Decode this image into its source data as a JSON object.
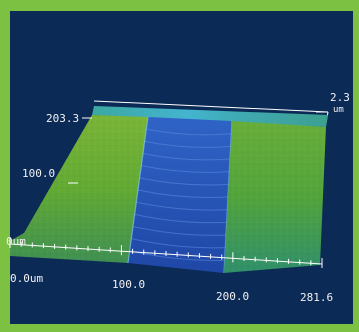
{
  "chart_data": {
    "type": "surface",
    "x_ticks": [
      "0.0um",
      "100.0",
      "200.0",
      "281.6"
    ],
    "y_ticks": [
      "203.3",
      "100.0",
      "0um"
    ],
    "z_ticks": [
      "2.3"
    ],
    "z_unit": "um",
    "xlim": [
      0,
      281.6
    ],
    "ylim": [
      0,
      203.3
    ],
    "zlim": [
      0,
      2.3
    ],
    "trench": {
      "x_start": 100.0,
      "x_end": 200.0,
      "depth_fraction": 0.55
    },
    "colors": {
      "background": "#0c2a56",
      "frame": "#7cc142",
      "surface_high": "#5fae36",
      "surface_mid": "#2f9c8c",
      "trench": "#2a55b8",
      "axis": "#ffffff"
    }
  }
}
